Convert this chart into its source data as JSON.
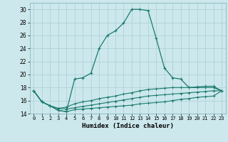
{
  "title": "",
  "xlabel": "Humidex (Indice chaleur)",
  "ylabel": "",
  "bg_color": "#cce8ec",
  "grid_color": "#aacdd4",
  "line_color": "#1a7a6e",
  "x_hours": [
    0,
    1,
    2,
    3,
    4,
    5,
    6,
    7,
    8,
    9,
    10,
    11,
    12,
    13,
    14,
    15,
    16,
    17,
    18,
    19,
    20,
    21,
    22,
    23
  ],
  "series_main": [
    17.5,
    15.8,
    15.2,
    14.5,
    14.3,
    19.3,
    19.5,
    20.2,
    24.0,
    26.0,
    26.7,
    27.9,
    30.0,
    30.0,
    29.8,
    25.5,
    21.0,
    19.5,
    19.3,
    18.0,
    18.0,
    18.0,
    18.0,
    17.5
  ],
  "series_low1": [
    17.5,
    15.8,
    15.2,
    14.8,
    15.0,
    15.5,
    15.8,
    16.0,
    16.3,
    16.5,
    16.7,
    17.0,
    17.2,
    17.5,
    17.7,
    17.8,
    17.9,
    18.0,
    18.0,
    18.0,
    18.1,
    18.2,
    18.2,
    17.5
  ],
  "series_low2": [
    17.5,
    15.8,
    15.2,
    14.8,
    14.7,
    14.9,
    15.1,
    15.3,
    15.5,
    15.7,
    15.9,
    16.1,
    16.3,
    16.5,
    16.7,
    16.8,
    16.9,
    17.0,
    17.1,
    17.2,
    17.3,
    17.4,
    17.5,
    17.5
  ],
  "series_low3": [
    17.5,
    15.8,
    15.2,
    14.5,
    14.3,
    14.6,
    14.7,
    14.8,
    14.9,
    15.0,
    15.1,
    15.2,
    15.3,
    15.5,
    15.6,
    15.7,
    15.8,
    16.0,
    16.2,
    16.3,
    16.5,
    16.6,
    16.7,
    17.5
  ],
  "ylim": [
    14,
    31
  ],
  "yticks": [
    14,
    16,
    18,
    20,
    22,
    24,
    26,
    28,
    30
  ],
  "xticks": [
    0,
    1,
    2,
    3,
    4,
    5,
    6,
    7,
    8,
    9,
    10,
    11,
    12,
    13,
    14,
    15,
    16,
    17,
    18,
    19,
    20,
    21,
    22,
    23
  ],
  "xlim": [
    -0.5,
    23.5
  ]
}
